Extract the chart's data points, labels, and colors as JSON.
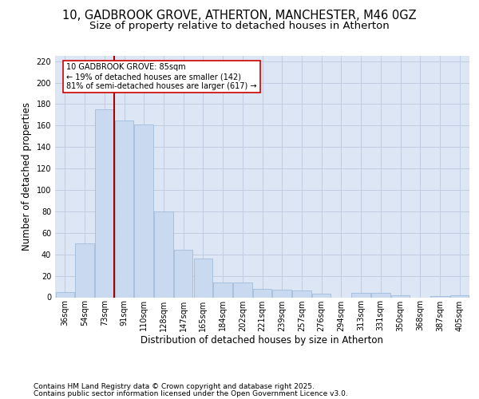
{
  "title_line1": "10, GADBROOK GROVE, ATHERTON, MANCHESTER, M46 0GZ",
  "title_line2": "Size of property relative to detached houses in Atherton",
  "xlabel": "Distribution of detached houses by size in Atherton",
  "ylabel": "Number of detached properties",
  "categories": [
    "36sqm",
    "54sqm",
    "73sqm",
    "91sqm",
    "110sqm",
    "128sqm",
    "147sqm",
    "165sqm",
    "184sqm",
    "202sqm",
    "221sqm",
    "239sqm",
    "257sqm",
    "276sqm",
    "294sqm",
    "313sqm",
    "331sqm",
    "350sqm",
    "368sqm",
    "387sqm",
    "405sqm"
  ],
  "values": [
    5,
    50,
    175,
    165,
    161,
    80,
    44,
    36,
    14,
    14,
    8,
    7,
    6,
    3,
    0,
    4,
    4,
    2,
    0,
    1,
    2
  ],
  "bar_color": "#c9d9ef",
  "bar_edge_color": "#a0bcda",
  "grid_color": "#c0cde0",
  "background_color": "#dce6f5",
  "red_line_x": 2.5,
  "red_line_color": "#aa0000",
  "annotation_line1": "10 GADBROOK GROVE: 85sqm",
  "annotation_line2": "← 19% of detached houses are smaller (142)",
  "annotation_line3": "81% of semi-detached houses are larger (617) →",
  "annotation_box_edge_color": "#cc0000",
  "ylim": [
    0,
    225
  ],
  "yticks": [
    0,
    20,
    40,
    60,
    80,
    100,
    120,
    140,
    160,
    180,
    200,
    220
  ],
  "footer_line1": "Contains HM Land Registry data © Crown copyright and database right 2025.",
  "footer_line2": "Contains public sector information licensed under the Open Government Licence v3.0.",
  "title_fontsize": 10.5,
  "subtitle_fontsize": 9.5,
  "tick_fontsize": 7,
  "label_fontsize": 8.5,
  "footer_fontsize": 6.5,
  "annotation_fontsize": 7
}
